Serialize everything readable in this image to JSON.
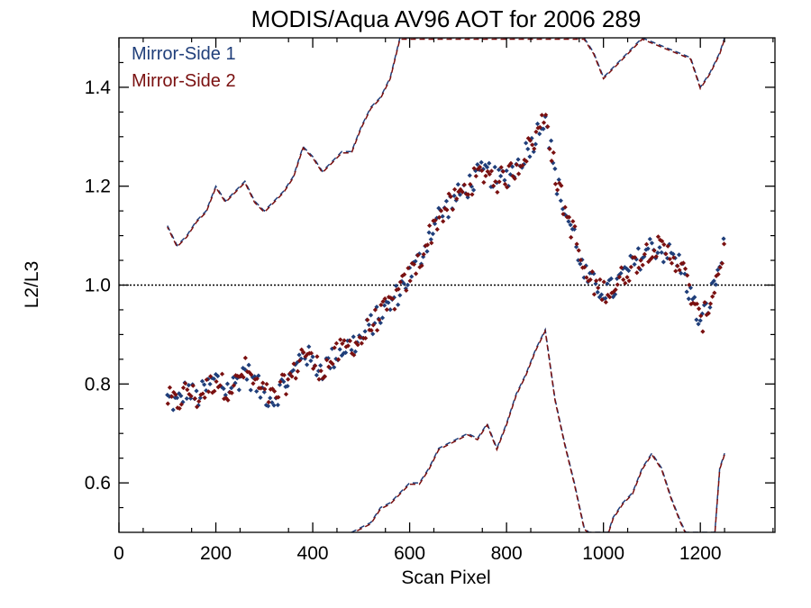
{
  "chart_data": {
    "type": "scatter",
    "title": "MODIS/Aqua AV96 AOT for 2006 289",
    "xlabel": "Scan Pixel",
    "ylabel": "L2/L3",
    "xlim": [
      0,
      1354
    ],
    "ylim": [
      0.5,
      1.5
    ],
    "xticks": [
      0,
      200,
      400,
      600,
      800,
      1000,
      1200
    ],
    "xtick_labels": [
      "0",
      "200",
      "400",
      "600",
      "800",
      "1000",
      "1200"
    ],
    "yticks": [
      0.6,
      0.8,
      1.0,
      1.2,
      1.4
    ],
    "ytick_labels": [
      "0.6",
      "0.8",
      "1.0",
      "1.2",
      "1.4"
    ],
    "reference_line": 1.0,
    "legend": [
      {
        "label": "Mirror-Side 1",
        "color": "#1f3e7a"
      },
      {
        "label": "Mirror-Side 2",
        "color": "#7a1010"
      }
    ],
    "legend_position": "top-left",
    "marker": "diamond",
    "mean_profile": [
      [
        100,
        0.77
      ],
      [
        120,
        0.76
      ],
      [
        140,
        0.79
      ],
      [
        160,
        0.77
      ],
      [
        180,
        0.79
      ],
      [
        200,
        0.81
      ],
      [
        220,
        0.79
      ],
      [
        240,
        0.8
      ],
      [
        260,
        0.83
      ],
      [
        280,
        0.8
      ],
      [
        300,
        0.78
      ],
      [
        320,
        0.77
      ],
      [
        340,
        0.8
      ],
      [
        360,
        0.82
      ],
      [
        380,
        0.87
      ],
      [
        400,
        0.84
      ],
      [
        420,
        0.83
      ],
      [
        440,
        0.85
      ],
      [
        460,
        0.87
      ],
      [
        480,
        0.88
      ],
      [
        500,
        0.89
      ],
      [
        520,
        0.92
      ],
      [
        540,
        0.94
      ],
      [
        560,
        0.96
      ],
      [
        580,
        0.99
      ],
      [
        600,
        1.02
      ],
      [
        620,
        1.05
      ],
      [
        640,
        1.1
      ],
      [
        660,
        1.14
      ],
      [
        680,
        1.16
      ],
      [
        700,
        1.18
      ],
      [
        720,
        1.2
      ],
      [
        740,
        1.22
      ],
      [
        760,
        1.23
      ],
      [
        780,
        1.21
      ],
      [
        800,
        1.22
      ],
      [
        820,
        1.24
      ],
      [
        840,
        1.27
      ],
      [
        860,
        1.3
      ],
      [
        880,
        1.35
      ],
      [
        900,
        1.22
      ],
      [
        920,
        1.15
      ],
      [
        940,
        1.1
      ],
      [
        960,
        1.02
      ],
      [
        980,
        1.0
      ],
      [
        1000,
        0.99
      ],
      [
        1020,
        0.99
      ],
      [
        1040,
        1.02
      ],
      [
        1060,
        1.04
      ],
      [
        1080,
        1.06
      ],
      [
        1100,
        1.08
      ],
      [
        1120,
        1.07
      ],
      [
        1140,
        1.06
      ],
      [
        1160,
        1.04
      ],
      [
        1180,
        0.98
      ],
      [
        1200,
        0.92
      ],
      [
        1220,
        0.97
      ],
      [
        1240,
        1.04
      ],
      [
        1250,
        1.08
      ]
    ],
    "upper_envelope": [
      [
        100,
        1.12
      ],
      [
        120,
        1.08
      ],
      [
        140,
        1.1
      ],
      [
        160,
        1.13
      ],
      [
        180,
        1.15
      ],
      [
        200,
        1.2
      ],
      [
        220,
        1.17
      ],
      [
        240,
        1.19
      ],
      [
        260,
        1.21
      ],
      [
        280,
        1.17
      ],
      [
        300,
        1.15
      ],
      [
        320,
        1.17
      ],
      [
        340,
        1.19
      ],
      [
        360,
        1.22
      ],
      [
        380,
        1.28
      ],
      [
        400,
        1.26
      ],
      [
        420,
        1.23
      ],
      [
        440,
        1.25
      ],
      [
        460,
        1.27
      ],
      [
        480,
        1.27
      ],
      [
        500,
        1.32
      ],
      [
        520,
        1.36
      ],
      [
        540,
        1.38
      ],
      [
        560,
        1.42
      ],
      [
        580,
        1.5
      ],
      [
        960,
        1.5
      ],
      [
        980,
        1.47
      ],
      [
        1000,
        1.42
      ],
      [
        1020,
        1.44
      ],
      [
        1040,
        1.46
      ],
      [
        1060,
        1.48
      ],
      [
        1080,
        1.5
      ],
      [
        1180,
        1.46
      ],
      [
        1200,
        1.4
      ],
      [
        1220,
        1.43
      ],
      [
        1240,
        1.47
      ],
      [
        1250,
        1.5
      ]
    ],
    "lower_envelope": [
      [
        480,
        0.5
      ],
      [
        500,
        0.51
      ],
      [
        520,
        0.52
      ],
      [
        540,
        0.55
      ],
      [
        560,
        0.56
      ],
      [
        580,
        0.58
      ],
      [
        600,
        0.6
      ],
      [
        620,
        0.6
      ],
      [
        640,
        0.63
      ],
      [
        660,
        0.67
      ],
      [
        680,
        0.68
      ],
      [
        700,
        0.69
      ],
      [
        720,
        0.7
      ],
      [
        740,
        0.69
      ],
      [
        760,
        0.72
      ],
      [
        780,
        0.67
      ],
      [
        800,
        0.72
      ],
      [
        820,
        0.78
      ],
      [
        840,
        0.82
      ],
      [
        860,
        0.87
      ],
      [
        880,
        0.91
      ],
      [
        900,
        0.77
      ],
      [
        920,
        0.68
      ],
      [
        940,
        0.6
      ],
      [
        960,
        0.51
      ],
      [
        970,
        0.5
      ],
      [
        1010,
        0.5
      ],
      [
        1020,
        0.53
      ],
      [
        1040,
        0.56
      ],
      [
        1060,
        0.58
      ],
      [
        1080,
        0.63
      ],
      [
        1100,
        0.66
      ],
      [
        1120,
        0.63
      ],
      [
        1140,
        0.57
      ],
      [
        1160,
        0.52
      ],
      [
        1170,
        0.5
      ],
      [
        1230,
        0.5
      ],
      [
        1240,
        0.63
      ],
      [
        1250,
        0.66
      ]
    ],
    "point_spacing": 4,
    "noise_amplitude": 0.025
  }
}
